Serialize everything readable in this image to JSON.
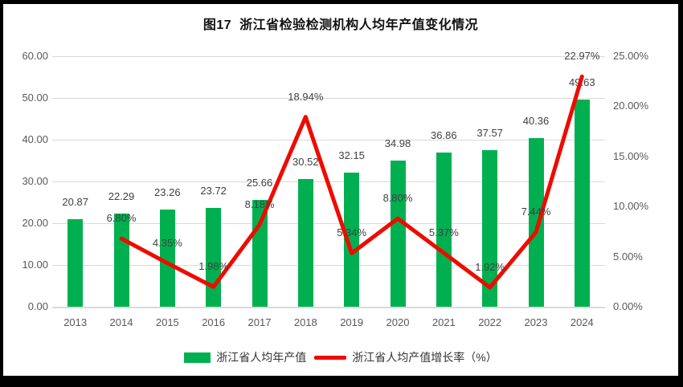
{
  "title": "图17  浙江省检验检测机构人均年产值变化情况",
  "colors": {
    "bar": "#00B050",
    "line": "#EE0B00",
    "grid": "#D9D9D9",
    "axis_text": "#595959",
    "data_label_text": "#404040",
    "title_text": "#111111",
    "background": "#FFFFFF",
    "frame": "#000000"
  },
  "legend": {
    "items": [
      {
        "label": "浙江省人均年产值",
        "type": "bar"
      },
      {
        "label": "浙江省人均产值增长率（%）",
        "type": "line"
      }
    ]
  },
  "chart_data": {
    "type": "bar+line",
    "title": "图17  浙江省检验检测机构人均年产值变化情况",
    "categories": [
      "2013",
      "2014",
      "2015",
      "2016",
      "2017",
      "2018",
      "2019",
      "2020",
      "2021",
      "2022",
      "2023",
      "2024"
    ],
    "series": [
      {
        "name": "浙江省人均年产值",
        "type": "bar",
        "axis": "left",
        "values": [
          20.87,
          22.29,
          23.26,
          23.72,
          25.66,
          30.52,
          32.15,
          34.98,
          36.86,
          37.57,
          40.36,
          49.63
        ],
        "labels": [
          "20.87",
          "22.29",
          "23.26",
          "23.72",
          "25.66",
          "30.52",
          "32.15",
          "34.98",
          "36.86",
          "37.57",
          "40.36",
          "49.63"
        ]
      },
      {
        "name": "浙江省人均产值增长率（%）",
        "type": "line",
        "axis": "right",
        "values": [
          null,
          6.8,
          4.35,
          1.98,
          8.18,
          18.94,
          5.34,
          8.8,
          5.37,
          1.92,
          7.44,
          22.97
        ],
        "labels": [
          null,
          "6.80%",
          "4.35%",
          "1.98%",
          "8.18%",
          "18.94%",
          "5.34%",
          "8.80%",
          "5.37%",
          "1.92%",
          "7.44%",
          "22.97%"
        ]
      }
    ],
    "left_axis": {
      "min": 0,
      "max": 60,
      "tick_labels": [
        "0.00",
        "10.00",
        "20.00",
        "30.00",
        "40.00",
        "50.00",
        "60.00"
      ]
    },
    "right_axis": {
      "min": 0,
      "max": 25,
      "tick_labels": [
        "0.00%",
        "5.00%",
        "10.00%",
        "15.00%",
        "20.00%",
        "25.00%"
      ]
    },
    "grid": true,
    "legend_position": "bottom"
  }
}
